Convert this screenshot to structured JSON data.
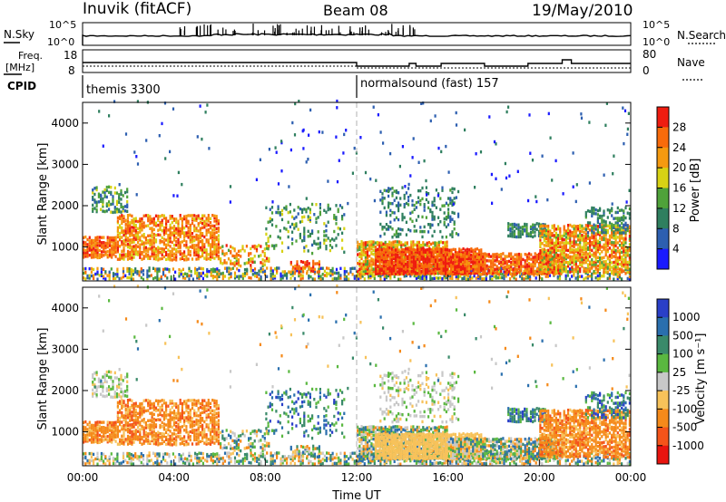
{
  "header": {
    "title": "Inuvik (fitACF)",
    "beam": "Beam 08",
    "date": "19/May/2010"
  },
  "status_panels": {
    "nsky_label": "N.Sky",
    "nsearch_label": "N.Search",
    "noise_ticks_left": [
      "10^5",
      "10^0"
    ],
    "noise_ticks_right": [
      "10^5",
      "10^0"
    ],
    "freq_label_top": "Freq.",
    "freq_label_bottom": "[MHz]",
    "freq_ticks": [
      "18",
      "8"
    ],
    "nave_label": "Nave",
    "nave_ticks": [
      "80",
      "0"
    ],
    "cpid_label": "CPID",
    "cpid_segments": [
      {
        "name": "themis 3300",
        "start_hour": 0
      },
      {
        "name": "normalsound (fast) 157",
        "start_hour": 12
      }
    ]
  },
  "chart_data": [
    {
      "type": "heatmap",
      "title": "",
      "xlabel": "Time UT",
      "ylabel": "Slant Range [km]",
      "xlim_hours": [
        0,
        24
      ],
      "ylim_km": [
        180,
        4500
      ],
      "x_tick_labels": [
        "00:00",
        "04:00",
        "08:00",
        "12:00",
        "16:00",
        "20:00",
        "00:00"
      ],
      "y_tick_labels": [
        "1000",
        "2000",
        "3000",
        "4000"
      ],
      "colorbar_label": "Power [dB]",
      "colorbar_ticks": [
        "4",
        "8",
        "12",
        "16",
        "20",
        "24",
        "28"
      ],
      "colorbar_colors": [
        "#1a1aff",
        "#2d5fb0",
        "#2f7f5f",
        "#4fa23a",
        "#d7d214",
        "#f59a10",
        "#f86b0b",
        "#ef1c10"
      ]
    },
    {
      "type": "heatmap",
      "title": "",
      "xlabel": "Time UT",
      "ylabel": "Slant Range [km]",
      "xlim_hours": [
        0,
        24
      ],
      "ylim_km": [
        180,
        4500
      ],
      "x_tick_labels": [
        "00:00",
        "04:00",
        "08:00",
        "12:00",
        "16:00",
        "20:00",
        "00:00"
      ],
      "y_tick_labels": [
        "1000",
        "2000",
        "3000",
        "4000"
      ],
      "colorbar_label": "Velocity [m s⁻¹]",
      "colorbar_ticks": [
        "1000",
        "500",
        "100",
        "25",
        "-25",
        "-100",
        "-500",
        "-1000"
      ],
      "colorbar_colors": [
        "#2a3fc8",
        "#2a6fae",
        "#3a8a6a",
        "#5ab840",
        "#c8c8c8",
        "#f7c25a",
        "#f58a1a",
        "#f4541a",
        "#e8140f"
      ]
    }
  ],
  "colors": {
    "axis": "#000000",
    "divider": "#b0b0b0"
  }
}
